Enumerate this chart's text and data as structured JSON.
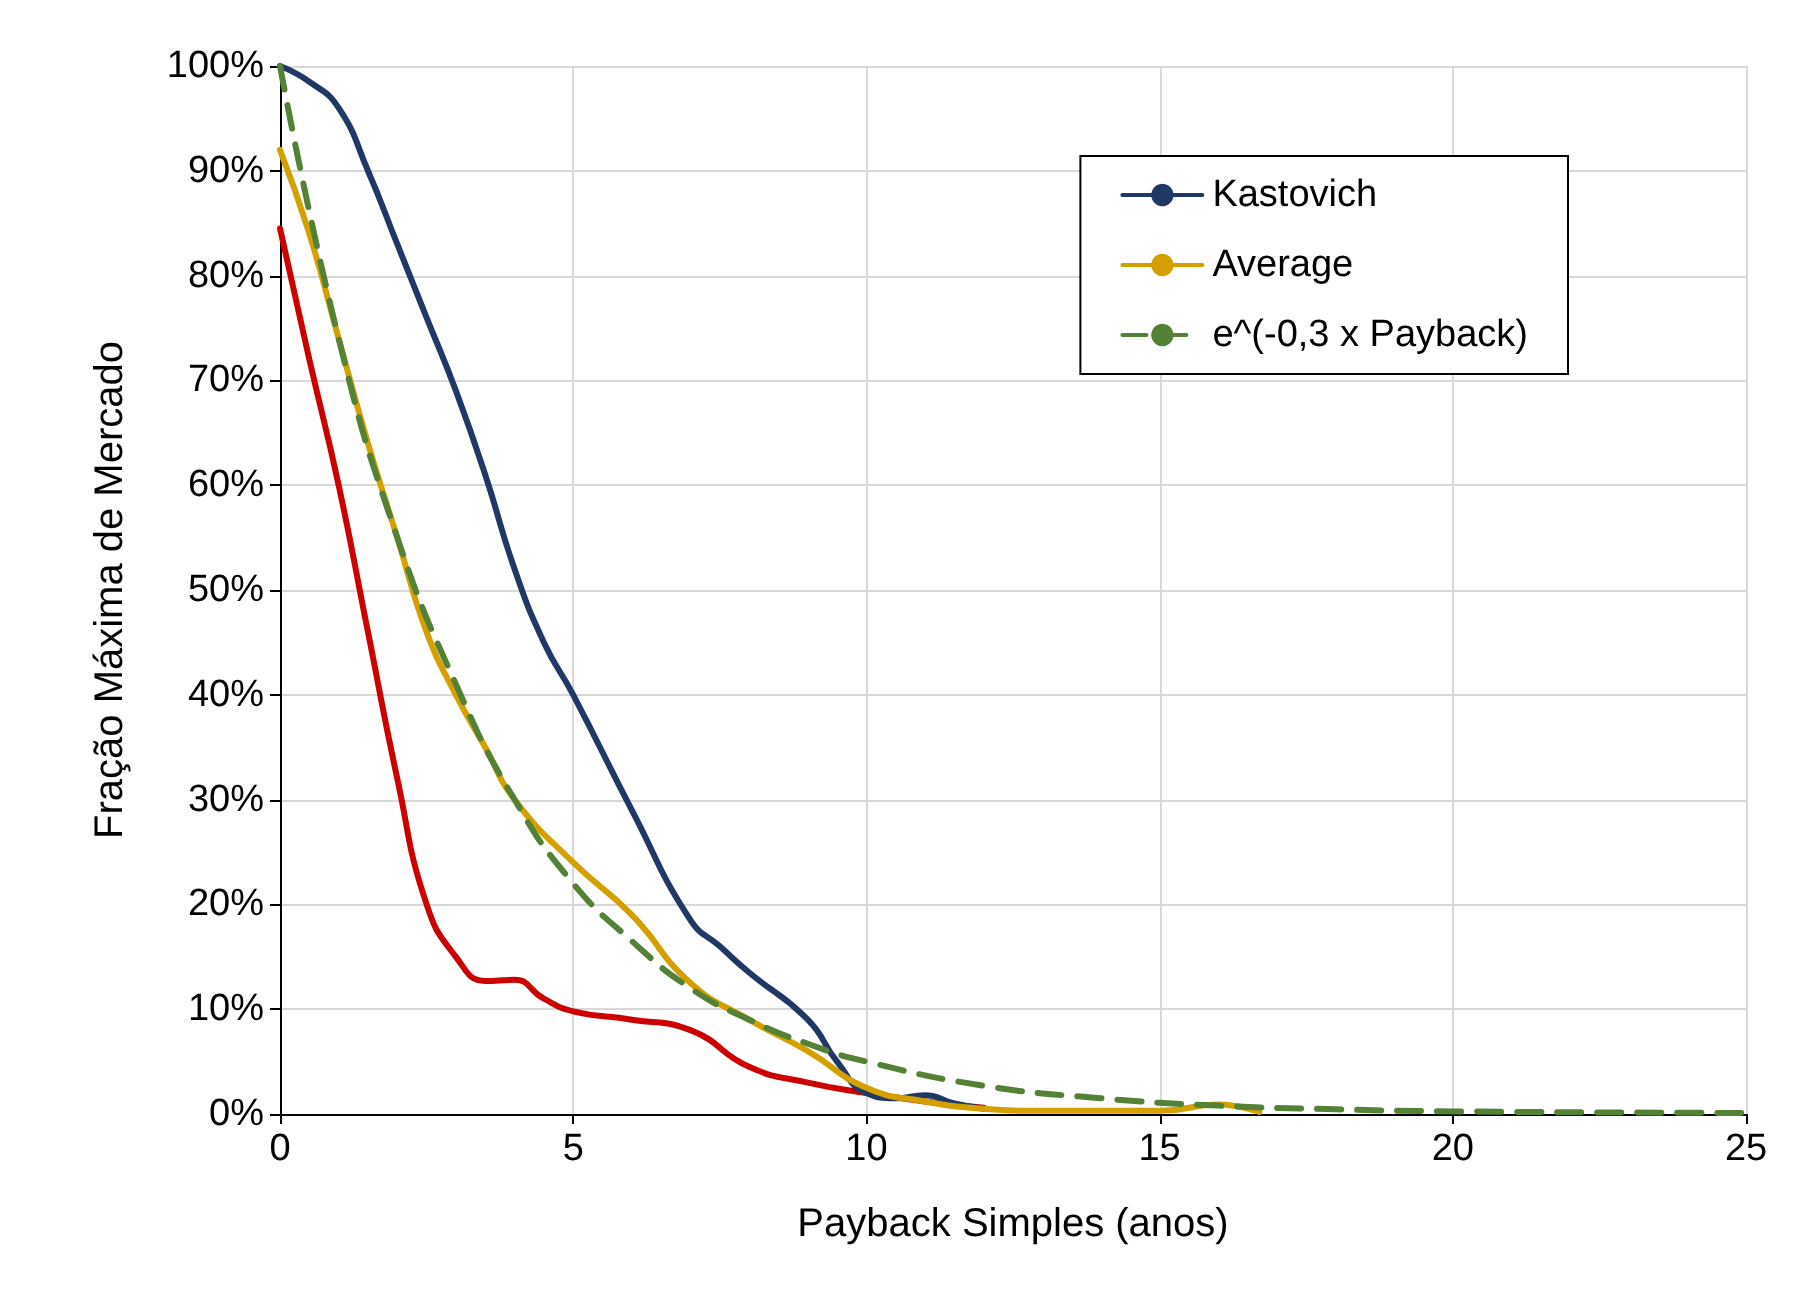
{
  "chart_data": {
    "type": "line",
    "xlabel": "Payback Simples (anos)",
    "ylabel": "Fração Máxima de Mercado",
    "xlim": [
      0,
      25
    ],
    "xticks": [
      0,
      5,
      10,
      15,
      20,
      25
    ],
    "ylim": [
      0,
      100
    ],
    "yticks": [
      {
        "value": 0,
        "label": "0%"
      },
      {
        "value": 10,
        "label": "10%"
      },
      {
        "value": 20,
        "label": "20%"
      },
      {
        "value": 30,
        "label": "30%"
      },
      {
        "value": 40,
        "label": "40%"
      },
      {
        "value": 50,
        "label": "50%"
      },
      {
        "value": 60,
        "label": "60%"
      },
      {
        "value": 70,
        "label": "70%"
      },
      {
        "value": 80,
        "label": "80%"
      },
      {
        "value": 90,
        "label": "90%"
      },
      {
        "value": 100,
        "label": "100%"
      }
    ],
    "grid": true,
    "legend": "top right",
    "marker": "none",
    "series": [
      {
        "color": "#cc0000",
        "line_style": "solid",
        "x": [
          0,
          0.5,
          1,
          1.5,
          2,
          2.5,
          3,
          3.5,
          4,
          4.5,
          5,
          6,
          7,
          8,
          9,
          10,
          11,
          12
        ],
        "values": [
          84.5,
          72,
          60,
          46,
          32,
          20,
          15,
          12.7,
          12.8,
          11,
          9.8,
          9,
          8,
          4.5,
          3,
          2,
          1.2,
          0.6
        ]
      },
      {
        "name": "Kastovich",
        "color": "#1f3864",
        "line_style": "solid",
        "x": [
          0,
          0.5,
          1,
          1.5,
          2,
          2.5,
          3,
          3.5,
          4,
          4.5,
          5,
          6,
          7,
          7.5,
          8,
          9,
          9.5,
          10,
          10.5,
          11,
          11.5,
          12
        ],
        "values": [
          100,
          98.5,
          96,
          90,
          83,
          76,
          69,
          61,
          52,
          45,
          40,
          29,
          18.5,
          16,
          13.5,
          9,
          5,
          2,
          1.5,
          1.8,
          1,
          0.5
        ]
      },
      {
        "name": "Average",
        "color": "#d4a000",
        "line_style": "solid",
        "x": [
          0,
          0.5,
          1,
          1.5,
          2,
          2.5,
          3,
          3.5,
          4,
          5,
          6,
          7,
          8,
          9,
          10,
          11,
          12,
          13,
          15,
          16,
          16.7
        ],
        "values": [
          92,
          84,
          74,
          64,
          55,
          46,
          40,
          35,
          30,
          24,
          19,
          12.5,
          9,
          6,
          2.5,
          1.2,
          0.5,
          0.3,
          0.3,
          0.9,
          0.2
        ]
      },
      {
        "name": "e^(-0,3 x Payback)",
        "color": "#538135",
        "line_style": "dashed",
        "x": [
          0,
          1,
          2,
          3,
          4,
          5,
          6,
          7,
          8,
          9,
          10,
          12,
          14,
          16,
          18,
          20,
          25
        ],
        "values": [
          100,
          74,
          55,
          41,
          30,
          22,
          16.5,
          12,
          9,
          6.7,
          5,
          2.7,
          1.5,
          0.8,
          0.45,
          0.25,
          0.1
        ]
      }
    ]
  }
}
